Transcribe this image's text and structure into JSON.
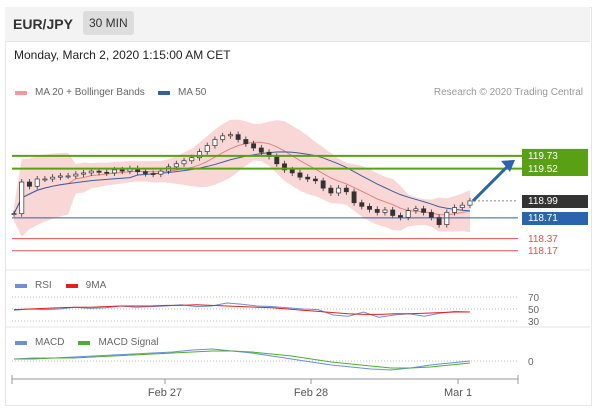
{
  "header": {
    "symbol": "EUR/JPY",
    "timeframe": "30 MIN"
  },
  "date_line": "Monday, March 2, 2020 1:15:00 AM CET",
  "legend": {
    "ma20": "MA 20 + Bollinger Bands",
    "ma50": "MA 50",
    "credit": "Research © 2020 Trading Central"
  },
  "rsi_legend": {
    "rsi": "RSI",
    "ma9": "9MA"
  },
  "macd_legend": {
    "macd": "MACD",
    "signal": "MACD Signal"
  },
  "colors": {
    "up_candle": "#ffffff",
    "down_candle": "#333333",
    "bollinger_fill": "#f8c9c9",
    "ma20": "#e88080",
    "ma50": "#3b5f9a",
    "resistance": "#5aa014",
    "support": "#e05050",
    "current": "#333333",
    "arrow": "#2a64ad"
  },
  "chart_data": {
    "type": "candlestick",
    "symbol": "EUR/JPY",
    "interval": "30 MIN",
    "x_ticks": [
      "Feb 27",
      "Feb 28",
      "Mar 1"
    ],
    "price_series": [
      118.78,
      119.3,
      119.23,
      119.35,
      119.35,
      119.38,
      119.4,
      119.4,
      119.43,
      119.45,
      119.48,
      119.46,
      119.45,
      119.5,
      119.48,
      119.52,
      119.47,
      119.44,
      119.43,
      119.48,
      119.55,
      119.6,
      119.65,
      119.7,
      119.8,
      119.9,
      120.0,
      120.06,
      120.08,
      120.0,
      119.93,
      119.86,
      119.79,
      119.72,
      119.6,
      119.5,
      119.45,
      119.38,
      119.35,
      119.32,
      119.2,
      119.12,
      119.2,
      119.14,
      118.96,
      118.9,
      118.85,
      118.8,
      118.84,
      118.75,
      118.72,
      118.83,
      118.86,
      118.8,
      118.72,
      118.6,
      118.8,
      118.88,
      118.92,
      118.99
    ],
    "levels": [
      {
        "label": "119.73",
        "value": 119.73,
        "kind": "resistance"
      },
      {
        "label": "119.52",
        "value": 119.52,
        "kind": "resistance"
      },
      {
        "label": "118.99",
        "value": 118.99,
        "kind": "current"
      },
      {
        "label": "118.71",
        "value": 118.71,
        "kind": "pivot"
      },
      {
        "label": "118.37",
        "value": 118.37,
        "kind": "support"
      },
      {
        "label": "118.17",
        "value": 118.17,
        "kind": "support"
      }
    ],
    "y_range": [
      118.1,
      120.6
    ],
    "rsi": {
      "levels": [
        {
          "label": "70",
          "value": 70
        },
        {
          "label": "50",
          "value": 50
        },
        {
          "label": "30",
          "value": 30
        }
      ],
      "series": [
        {
          "name": "RSI",
          "values": [
            48,
            50,
            49,
            50,
            53,
            51,
            52,
            55,
            53,
            54,
            55,
            57,
            54,
            55,
            60,
            58,
            55,
            54,
            52,
            50,
            49,
            40,
            38,
            45,
            36,
            40,
            42,
            38,
            43,
            46,
            45
          ]
        },
        {
          "name": "9MA",
          "values": [
            49,
            50,
            51,
            52,
            53,
            53,
            54,
            55,
            55,
            55,
            56,
            56,
            57,
            56,
            55,
            54,
            53,
            52,
            50,
            48,
            46,
            44,
            42,
            41,
            41,
            42,
            42,
            43,
            44,
            45,
            45
          ]
        }
      ]
    },
    "macd": {
      "levels": [
        {
          "label": "0",
          "value": 0
        }
      ],
      "series": [
        {
          "name": "MACD",
          "values": [
            0.02,
            0.03,
            0.03,
            0.04,
            0.05,
            0.06,
            0.07,
            0.08,
            0.09,
            0.11,
            0.12,
            0.1,
            0.08,
            0.05,
            0.02,
            -0.01,
            -0.04,
            -0.06,
            -0.08,
            -0.09,
            -0.07,
            -0.04,
            -0.02,
            0.0
          ]
        },
        {
          "name": "MACD Signal",
          "values": [
            0.02,
            0.02,
            0.03,
            0.03,
            0.04,
            0.05,
            0.06,
            0.07,
            0.08,
            0.09,
            0.1,
            0.1,
            0.09,
            0.07,
            0.05,
            0.02,
            -0.01,
            -0.03,
            -0.05,
            -0.07,
            -0.07,
            -0.06,
            -0.04,
            -0.02
          ]
        }
      ]
    }
  }
}
